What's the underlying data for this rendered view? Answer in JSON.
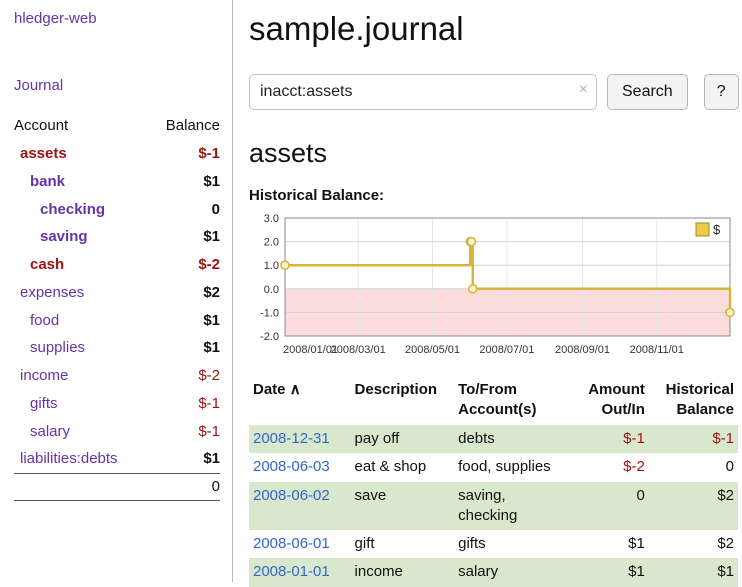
{
  "app": {
    "title": "hledger-web",
    "journal_label": "Journal"
  },
  "sidebar": {
    "headers": {
      "account": "Account",
      "balance": "Balance"
    },
    "accounts": [
      {
        "name": "assets",
        "indent": 0,
        "bold": true,
        "neg_name": true,
        "balance": "$-1",
        "neg_balance": true,
        "balance_bold": true
      },
      {
        "name": "bank",
        "indent": 1,
        "bold": true,
        "neg_name": false,
        "balance": "$1",
        "neg_balance": false,
        "balance_bold": true
      },
      {
        "name": "checking",
        "indent": 2,
        "bold": true,
        "neg_name": false,
        "balance": "0",
        "neg_balance": false,
        "balance_bold": true
      },
      {
        "name": "saving",
        "indent": 2,
        "bold": true,
        "neg_name": false,
        "balance": "$1",
        "neg_balance": false,
        "balance_bold": true
      },
      {
        "name": "cash",
        "indent": 1,
        "bold": true,
        "neg_name": true,
        "balance": "$-2",
        "neg_balance": true,
        "balance_bold": true
      },
      {
        "name": "expenses",
        "indent": 0,
        "bold": false,
        "neg_name": false,
        "balance": "$2",
        "neg_balance": false,
        "balance_bold": true
      },
      {
        "name": "food",
        "indent": 1,
        "bold": false,
        "neg_name": false,
        "balance": "$1",
        "neg_balance": false,
        "balance_bold": true
      },
      {
        "name": "supplies",
        "indent": 1,
        "bold": false,
        "neg_name": false,
        "balance": "$1",
        "neg_balance": false,
        "balance_bold": true
      },
      {
        "name": "income",
        "indent": 0,
        "bold": false,
        "neg_name": false,
        "balance": "$-2",
        "neg_balance": true,
        "balance_bold": false
      },
      {
        "name": "gifts",
        "indent": 1,
        "bold": false,
        "neg_name": false,
        "balance": "$-1",
        "neg_balance": true,
        "balance_bold": false
      },
      {
        "name": "salary",
        "indent": 1,
        "bold": false,
        "neg_name": false,
        "balance": "$-1",
        "neg_balance": true,
        "balance_bold": false
      },
      {
        "name": "liabilities:debts",
        "indent": 0,
        "bold": false,
        "neg_name": false,
        "balance": "$1",
        "neg_balance": false,
        "balance_bold": true
      }
    ],
    "total": "0"
  },
  "main": {
    "title": "sample.journal",
    "search": {
      "value": "inacct:assets",
      "clear_icon": "×",
      "button_label": "Search",
      "help_label": "?"
    },
    "account_heading": "assets"
  },
  "chart_data": {
    "type": "line",
    "title": "Historical Balance:",
    "step": true,
    "grid": true,
    "legend": {
      "label": "$",
      "position": "top-right"
    },
    "ylim": [
      -2,
      3
    ],
    "y_ticks": [
      {
        "label": "3.0",
        "value": 3
      },
      {
        "label": "2.0",
        "value": 2
      },
      {
        "label": "1.0",
        "value": 1
      },
      {
        "label": "0.0",
        "value": 0
      },
      {
        "label": "-1.0",
        "value": -1
      },
      {
        "label": "-2.0",
        "value": -2
      }
    ],
    "x_domain_days": [
      0,
      365
    ],
    "x_ticks": [
      {
        "label": "2008/01/01",
        "day": 0
      },
      {
        "label": "2008/03/01",
        "day": 60
      },
      {
        "label": "2008/05/01",
        "day": 121
      },
      {
        "label": "2008/07/01",
        "day": 182
      },
      {
        "label": "2008/09/01",
        "day": 244
      },
      {
        "label": "2008/11/01",
        "day": 305
      }
    ],
    "series": [
      {
        "name": "$",
        "color": "#d6b53c",
        "points": [
          {
            "date": "2008-01-01",
            "day": 0,
            "value": 1
          },
          {
            "date": "2008-06-01",
            "day": 152,
            "value": 2
          },
          {
            "date": "2008-06-02",
            "day": 153,
            "value": 2
          },
          {
            "date": "2008-06-03",
            "day": 154,
            "value": 0
          },
          {
            "date": "2008-12-31",
            "day": 365,
            "value": -1
          }
        ]
      }
    ],
    "negative_region_color": "#fbdcdc"
  },
  "register": {
    "headers": {
      "date": "Date",
      "sort_indicator": "∧",
      "description": "Description",
      "account": "To/From Account(s)",
      "amount": "Amount Out/In",
      "balance": "Historical Balance"
    },
    "rows": [
      {
        "date": "2008-12-31",
        "description": "pay off",
        "accounts": "debts",
        "amount": "$-1",
        "amount_neg": true,
        "balance": "$-1",
        "balance_neg": true,
        "shaded": true
      },
      {
        "date": "2008-06-03",
        "description": "eat & shop",
        "accounts": "food, supplies",
        "amount": "$-2",
        "amount_neg": true,
        "balance": "0",
        "balance_neg": false,
        "shaded": false
      },
      {
        "date": "2008-06-02",
        "description": "save",
        "accounts": "saving, checking",
        "amount": "0",
        "amount_neg": false,
        "balance": "$2",
        "balance_neg": false,
        "shaded": true
      },
      {
        "date": "2008-06-01",
        "description": "gift",
        "accounts": "gifts",
        "amount": "$1",
        "amount_neg": false,
        "balance": "$2",
        "balance_neg": false,
        "shaded": false
      },
      {
        "date": "2008-01-01",
        "description": "income",
        "accounts": "salary",
        "amount": "$1",
        "amount_neg": false,
        "balance": "$1",
        "balance_neg": false,
        "shaded": true
      }
    ]
  },
  "colors": {
    "link_purple": "#6633a8",
    "date_link_blue": "#3366cc",
    "negative_red": "#9d1313",
    "row_shade_green": "#d8e8cc",
    "chart_line_gold": "#d6b53c",
    "chart_negative_bg": "#fbdcdc"
  }
}
